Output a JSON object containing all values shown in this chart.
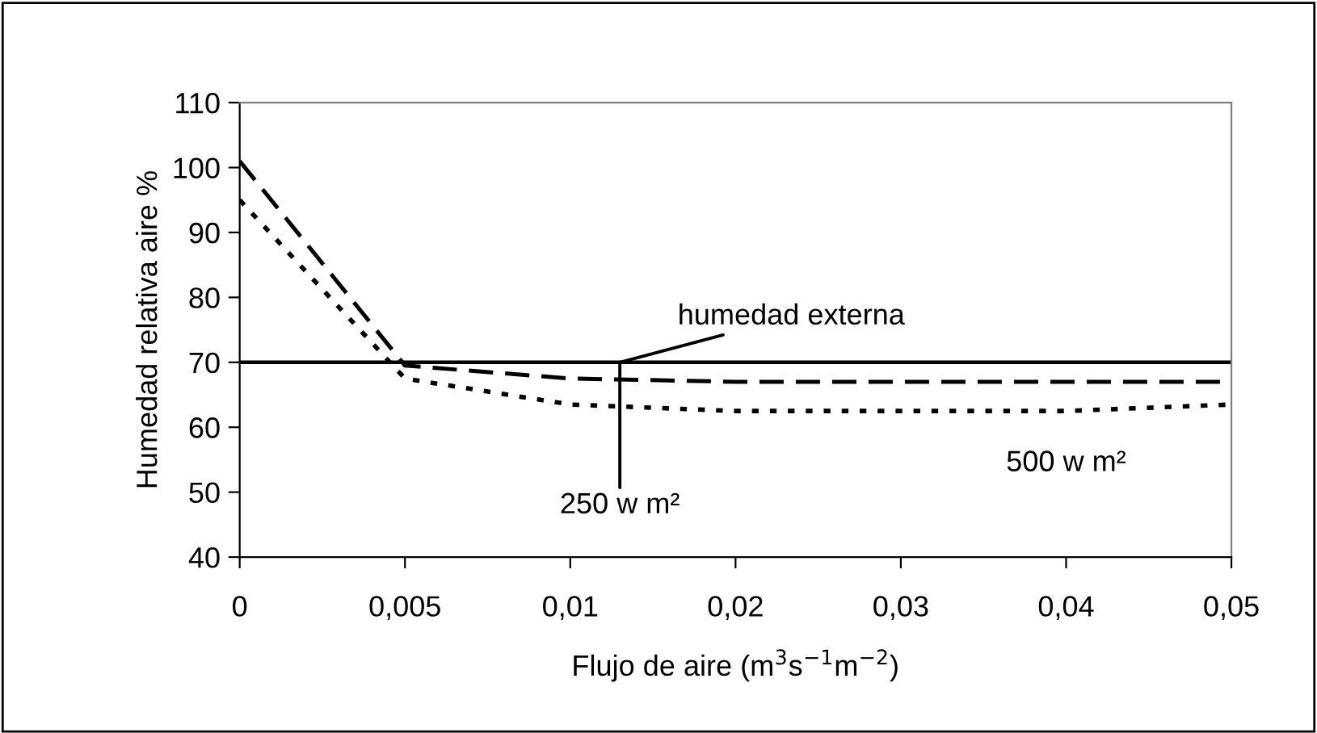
{
  "chart_data": {
    "type": "line",
    "xlabel": "Flujo de aire (m$^{3}$s$^{−1}$m$^{−2}$)",
    "ylabel": "Humedad relativa aire %",
    "categories": [
      "0",
      "0,005",
      "0,01",
      "0,02",
      "0,03",
      "0,04",
      "0,05"
    ],
    "series": [
      {
        "name": "humedad externa",
        "color": "#000000",
        "line_style": "solid",
        "values": [
          70,
          70,
          70,
          70,
          70,
          70,
          70
        ]
      },
      {
        "name": "250 w m²",
        "color": "#000000",
        "line_style": "dashed",
        "values": [
          101,
          69.5,
          67.5,
          67,
          67,
          67,
          67
        ]
      },
      {
        "name": "500 w m²",
        "color": "#000000",
        "line_style": "dotted",
        "values": [
          95,
          67.5,
          63.5,
          62.5,
          62.5,
          62.5,
          63.5
        ]
      }
    ],
    "ylim": [
      40,
      110
    ],
    "yticks": [
      40,
      50,
      60,
      70,
      80,
      90,
      100,
      110
    ],
    "grid": false,
    "legend": false,
    "marker": "none"
  }
}
